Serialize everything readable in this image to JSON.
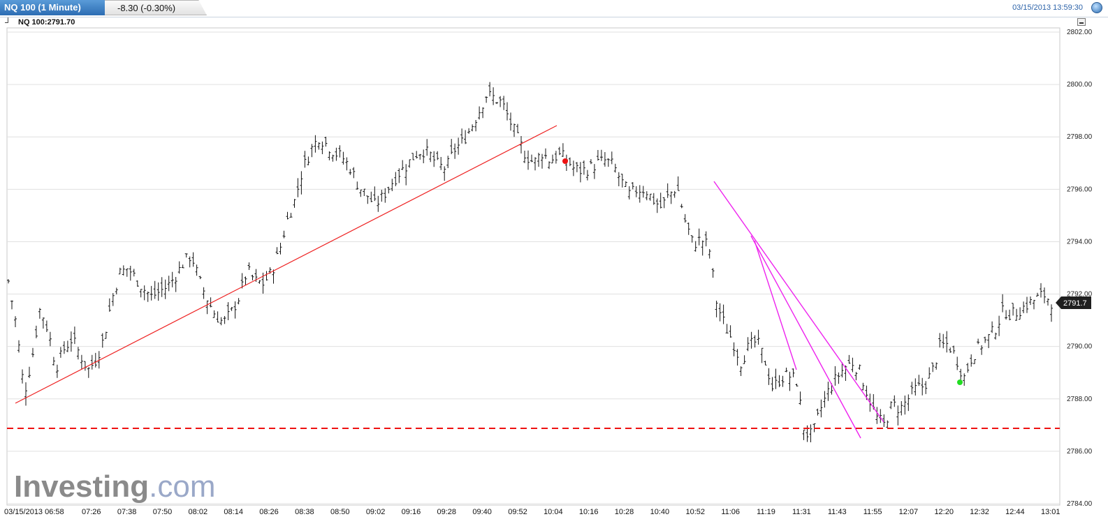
{
  "header": {
    "instrument_tab": "NQ 100 (1 Minute)",
    "change": "-8.30 (-0.30%)",
    "timestamp": "03/15/2013 13:59:30",
    "symbol_readout": "NQ 100:2791.70"
  },
  "icons": {
    "globe": "globe-icon",
    "cursor": "crosshair-icon",
    "minimize": "minimize-icon"
  },
  "watermark": {
    "brand": "Investing",
    "suffix": ".com"
  },
  "colors": {
    "trend_red": "#ee2222",
    "trend_magenta": "#ee22ee",
    "support": "#ee1111",
    "sell_dot": "#ee1111",
    "buy_dot": "#22dd22",
    "tab_blue": "#2c6db3",
    "grid": "#e0e0e0"
  },
  "chart_data": {
    "type": "ohlc",
    "instrument": "NQ 100",
    "interval": "1 Minute",
    "current_price": "2791.7",
    "ylim": [
      2784,
      2802
    ],
    "yticks": [
      "2784.00",
      "2786.00",
      "2788.00",
      "2790.00",
      "2792.00",
      "2794.00",
      "2796.00",
      "2798.00",
      "2800.00",
      "2802.00"
    ],
    "xticks": [
      "03/15/2013 06:58",
      "07:26",
      "07:38",
      "07:50",
      "08:02",
      "08:14",
      "08:26",
      "08:38",
      "08:50",
      "09:02",
      "09:16",
      "09:28",
      "09:40",
      "09:52",
      "10:04",
      "10:16",
      "10:28",
      "10:40",
      "10:52",
      "11:06",
      "11:19",
      "11:31",
      "11:43",
      "11:55",
      "12:07",
      "12:20",
      "12:32",
      "12:44",
      "13:01"
    ],
    "grid": "horizontal",
    "closes": [
      2792.5,
      2790.8,
      2788.2,
      2789.6,
      2791.5,
      2790.6,
      2789.2,
      2789.9,
      2790.3,
      2789.7,
      2789.1,
      2789.5,
      2790.3,
      2791.8,
      2792.8,
      2793.0,
      2792.6,
      2792.2,
      2791.9,
      2792.1,
      2792.3,
      2792.7,
      2793.2,
      2793.5,
      2792.5,
      2791.8,
      2791.2,
      2790.9,
      2791.3,
      2791.9,
      2792.9,
      2792.5,
      2792.4,
      2792.8,
      2793.6,
      2794.8,
      2795.6,
      2796.8,
      2797.5,
      2798.0,
      2797.7,
      2797.4,
      2797.2,
      2796.8,
      2796.1,
      2795.8,
      2795.4,
      2795.7,
      2796.2,
      2796.6,
      2796.9,
      2797.3,
      2797.5,
      2797.3,
      2796.9,
      2796.8,
      2797.5,
      2797.8,
      2798.3,
      2798.9,
      2799.6,
      2799.5,
      2799.3,
      2798.6,
      2797.9,
      2797.3,
      2797.0,
      2797.4,
      2797.1,
      2797.3,
      2797.2,
      2796.8,
      2796.7,
      2796.8,
      2797.0,
      2797.1,
      2796.9,
      2796.3,
      2795.8,
      2796.0,
      2796.0,
      2795.6,
      2795.3,
      2795.8,
      2796.1,
      2794.8,
      2793.9,
      2794.1,
      2793.8,
      2791.6,
      2790.8,
      2790.2,
      2789.4,
      2790.0,
      2790.2,
      2789.5,
      2788.4,
      2788.8,
      2788.9,
      2788.7,
      2786.7,
      2786.6,
      2787.6,
      2788.3,
      2788.8,
      2789.2,
      2789.4,
      2789.0,
      2788.1,
      2787.3,
      2787.0,
      2787.8,
      2787.6,
      2788.0,
      2788.4,
      2788.5,
      2789.0,
      2790.0,
      2790.1,
      2789.6,
      2788.8,
      2789.6,
      2790.0,
      2790.3,
      2790.7,
      2791.4,
      2791.2,
      2791.4,
      2791.6,
      2791.8,
      2792.0,
      2791.7
    ]
  },
  "annotations": {
    "current_price_label": "2791.7"
  }
}
